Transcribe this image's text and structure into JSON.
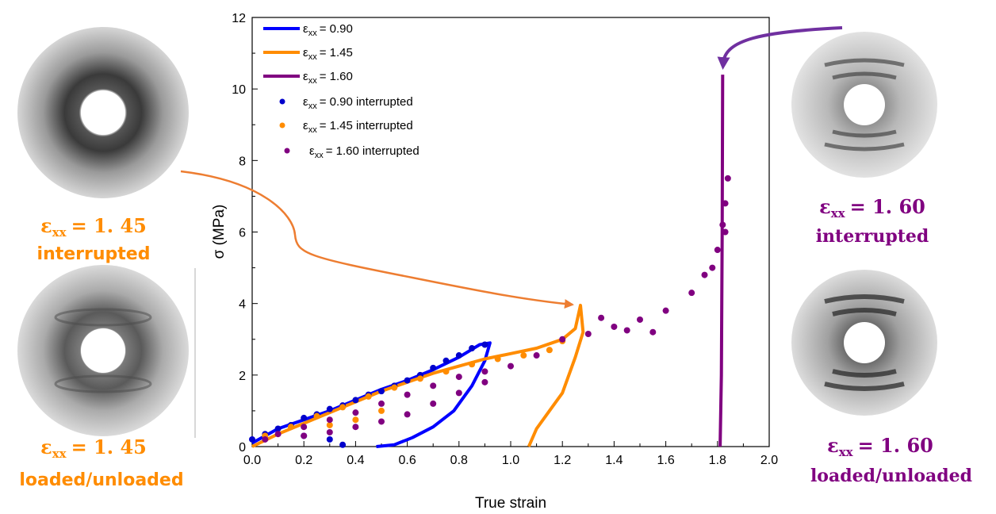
{
  "chart_data": {
    "type": "scatter",
    "xlabel": "True strain",
    "ylabel": "σ (MPa)",
    "xlim": [
      0.0,
      2.0
    ],
    "ylim": [
      0,
      12
    ],
    "x_ticks": [
      "0.0",
      "0.2",
      "0.4",
      "0.6",
      "0.8",
      "1.0",
      "1.2",
      "1.4",
      "1.6",
      "1.8",
      "2.0"
    ],
    "y_ticks": [
      "0",
      "2",
      "4",
      "6",
      "8",
      "10",
      "12"
    ],
    "grid": false,
    "legend_position": "top-left",
    "series": [
      {
        "name": "εxx = 0.90",
        "kind": "line",
        "color": "#0000ff",
        "points": [
          [
            0.0,
            0.1
          ],
          [
            0.1,
            0.5
          ],
          [
            0.2,
            0.75
          ],
          [
            0.3,
            1.0
          ],
          [
            0.4,
            1.3
          ],
          [
            0.5,
            1.6
          ],
          [
            0.6,
            1.85
          ],
          [
            0.7,
            2.15
          ],
          [
            0.8,
            2.5
          ],
          [
            0.88,
            2.85
          ],
          [
            0.92,
            2.9
          ],
          [
            0.9,
            2.4
          ],
          [
            0.85,
            1.7
          ],
          [
            0.78,
            1.0
          ],
          [
            0.7,
            0.55
          ],
          [
            0.62,
            0.25
          ],
          [
            0.55,
            0.05
          ],
          [
            0.48,
            0.0
          ]
        ]
      },
      {
        "name": "εxx = 1.45",
        "kind": "line",
        "color": "#ff8c00",
        "points": [
          [
            0.0,
            0.0
          ],
          [
            0.1,
            0.35
          ],
          [
            0.2,
            0.65
          ],
          [
            0.3,
            0.95
          ],
          [
            0.4,
            1.25
          ],
          [
            0.5,
            1.55
          ],
          [
            0.6,
            1.8
          ],
          [
            0.7,
            2.05
          ],
          [
            0.8,
            2.25
          ],
          [
            0.9,
            2.45
          ],
          [
            1.0,
            2.6
          ],
          [
            1.1,
            2.75
          ],
          [
            1.2,
            3.0
          ],
          [
            1.25,
            3.3
          ],
          [
            1.27,
            3.95
          ],
          [
            1.28,
            3.2
          ],
          [
            1.25,
            2.5
          ],
          [
            1.2,
            1.5
          ],
          [
            1.15,
            1.0
          ],
          [
            1.1,
            0.5
          ],
          [
            1.07,
            0.0
          ]
        ]
      },
      {
        "name": "εxx = 1.60",
        "kind": "line",
        "color": "#800080",
        "points": [
          [
            1.81,
            0.0
          ],
          [
            1.815,
            2.0
          ],
          [
            1.818,
            6.0
          ],
          [
            1.82,
            10.4
          ]
        ]
      },
      {
        "name": "εxx = 0.90 interrupted",
        "kind": "dots",
        "color": "#0000cc",
        "points": [
          [
            0.0,
            0.2
          ],
          [
            0.05,
            0.35
          ],
          [
            0.1,
            0.5
          ],
          [
            0.15,
            0.6
          ],
          [
            0.2,
            0.8
          ],
          [
            0.25,
            0.9
          ],
          [
            0.3,
            1.05
          ],
          [
            0.35,
            1.15
          ],
          [
            0.4,
            1.3
          ],
          [
            0.45,
            1.45
          ],
          [
            0.5,
            1.55
          ],
          [
            0.55,
            1.7
          ],
          [
            0.6,
            1.85
          ],
          [
            0.65,
            2.0
          ],
          [
            0.7,
            2.2
          ],
          [
            0.75,
            2.4
          ],
          [
            0.8,
            2.55
          ],
          [
            0.85,
            2.75
          ],
          [
            0.9,
            2.85
          ],
          [
            0.3,
            0.2
          ],
          [
            0.35,
            0.05
          ],
          [
            0.2,
            0.3
          ]
        ]
      },
      {
        "name": "εxx = 1.45 interrupted",
        "kind": "dots",
        "color": "#ff8c00",
        "points": [
          [
            0.05,
            0.3
          ],
          [
            0.15,
            0.55
          ],
          [
            0.25,
            0.85
          ],
          [
            0.35,
            1.1
          ],
          [
            0.45,
            1.4
          ],
          [
            0.55,
            1.65
          ],
          [
            0.65,
            1.9
          ],
          [
            0.75,
            2.1
          ],
          [
            0.85,
            2.3
          ],
          [
            0.95,
            2.45
          ],
          [
            1.05,
            2.55
          ],
          [
            1.15,
            2.7
          ],
          [
            1.2,
            2.95
          ],
          [
            0.3,
            0.6
          ],
          [
            0.4,
            0.75
          ],
          [
            0.5,
            1.0
          ]
        ]
      },
      {
        "name": "εxx = 1.60 interrupted",
        "kind": "dots",
        "color": "#800080",
        "points": [
          [
            0.05,
            0.2
          ],
          [
            0.1,
            0.35
          ],
          [
            0.2,
            0.55
          ],
          [
            0.3,
            0.75
          ],
          [
            0.4,
            0.95
          ],
          [
            0.5,
            1.2
          ],
          [
            0.6,
            1.45
          ],
          [
            0.7,
            1.7
          ],
          [
            0.8,
            1.95
          ],
          [
            0.9,
            2.1
          ],
          [
            1.0,
            2.25
          ],
          [
            1.1,
            2.55
          ],
          [
            1.2,
            3.0
          ],
          [
            1.3,
            3.15
          ],
          [
            1.4,
            3.35
          ],
          [
            1.5,
            3.55
          ],
          [
            1.6,
            3.8
          ],
          [
            1.7,
            4.3
          ],
          [
            1.75,
            4.8
          ],
          [
            1.8,
            5.5
          ],
          [
            1.82,
            6.2
          ],
          [
            1.83,
            6.8
          ],
          [
            1.84,
            7.5
          ],
          [
            1.83,
            6.0
          ],
          [
            1.78,
            5.0
          ],
          [
            0.2,
            0.3
          ],
          [
            0.3,
            0.4
          ],
          [
            0.4,
            0.55
          ],
          [
            0.5,
            0.7
          ],
          [
            0.6,
            0.9
          ],
          [
            0.7,
            1.2
          ],
          [
            0.8,
            1.5
          ],
          [
            0.9,
            1.8
          ],
          [
            1.35,
            3.6
          ],
          [
            1.45,
            3.25
          ],
          [
            1.55,
            3.2
          ]
        ]
      }
    ]
  },
  "legend_labels": [
    "= 0.90",
    "= 1.45",
    "= 1.60",
    "= 0.90 interrupted",
    "= 1.45 interrupted",
    "= 1.60 interrupted"
  ],
  "legend_symbol": "ε",
  "legend_subscript": "xx",
  "panels": {
    "top_left": {
      "symbol": "ε",
      "sub": "xx",
      "eq": "= 1. 45",
      "caption": "interrupted",
      "color": "#ff8c00"
    },
    "bottom_left": {
      "symbol": "ε",
      "sub": "xx",
      "eq": "= 1. 45",
      "caption": "loaded/unloaded",
      "color": "#ff8c00"
    },
    "top_right": {
      "symbol": "ε",
      "sub": "xx",
      "eq": "= 1. 60",
      "caption": "interrupted",
      "color": "#800080"
    },
    "bottom_right": {
      "symbol": "ε",
      "sub": "xx",
      "eq": "= 1. 60",
      "caption": "loaded/unloaded",
      "color": "#800080"
    }
  }
}
